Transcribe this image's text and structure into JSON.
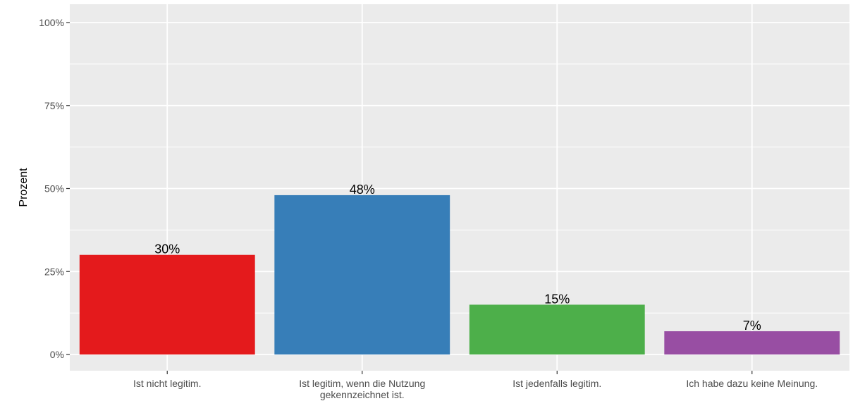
{
  "chart_data": {
    "type": "bar",
    "title": "",
    "xlabel": "",
    "ylabel": "Prozent",
    "ylim": [
      0,
      100
    ],
    "y_ticks": [
      0,
      25,
      50,
      75,
      100
    ],
    "y_tick_labels": [
      "0%",
      "25%",
      "50%",
      "75%",
      "100%"
    ],
    "grid": true,
    "legend": "none",
    "categories": [
      [
        "Ist nicht legitim."
      ],
      [
        "Ist legitim, wenn die Nutzung",
        "gekennzeichnet ist."
      ],
      [
        "Ist jedenfalls legitim."
      ],
      [
        "Ich habe dazu keine Meinung."
      ]
    ],
    "values": [
      30,
      48,
      15,
      7
    ],
    "value_labels": [
      "30%",
      "48%",
      "15%",
      "7%"
    ],
    "colors": [
      "#e41a1c",
      "#377eb8",
      "#4daf4a",
      "#984ea3"
    ],
    "panel_background": "#ebebeb",
    "grid_color": "#ffffff"
  }
}
